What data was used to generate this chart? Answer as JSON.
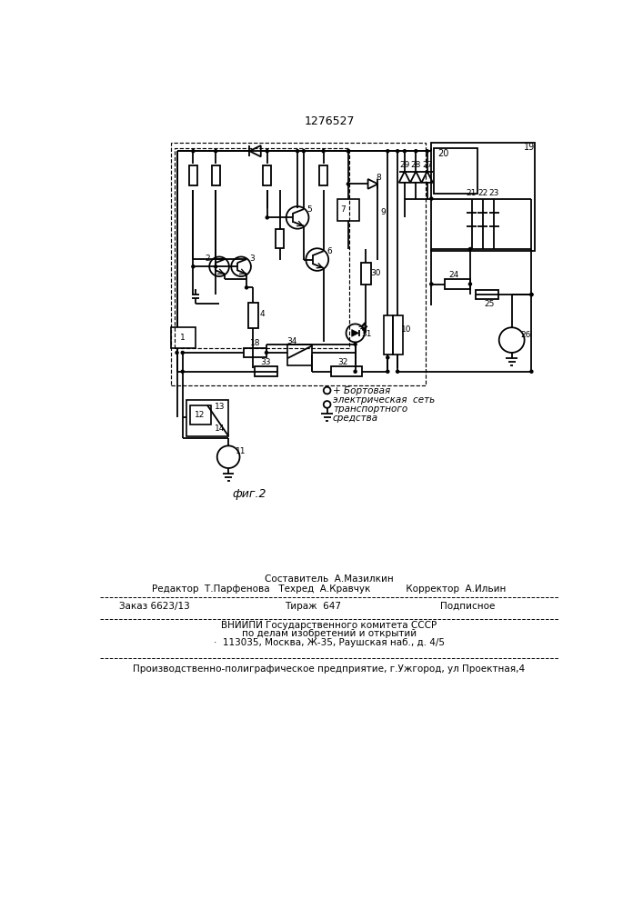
{
  "title": "1276527",
  "fig_caption": "фиг.2",
  "network_lines": [
    "+ Бортовая",
    "электрическая  сеть",
    "- транспортного",
    "средства"
  ],
  "footer": {
    "f1": "Составитель  А.Мазилкин",
    "f2": "Редактор  Т.Парфенова   Техред  А.Кравчук            Корректор  А.Ильин",
    "f3l": "Заказ 6623/13",
    "f3m": "Тираж  647",
    "f3r": "Подписное",
    "f4": "ВНИИПИ Государственного комитета СССР",
    "f5": "по делам изобретений и открытий",
    "f6": "·  113035, Москва, Ж-35, Раушская наб., д. 4/5",
    "f7": "Производственно-полиграфическое предприятие, г.Ужгород, ул Проектная,4"
  }
}
